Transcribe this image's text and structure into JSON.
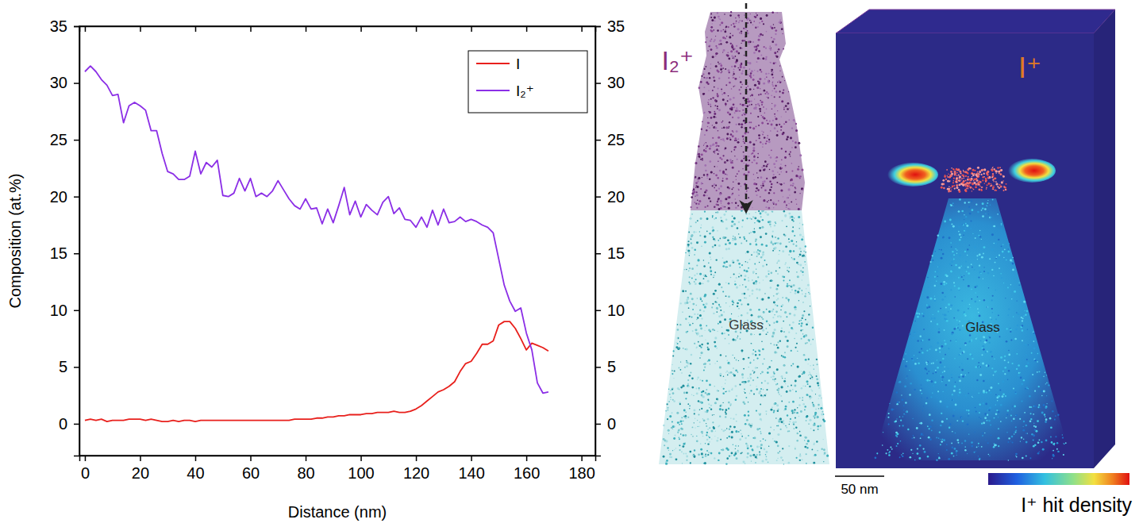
{
  "chart_data": {
    "type": "line",
    "x_label": "Distance (nm)",
    "y_label": "Composition (at.%)",
    "xlim": [
      -2,
      185
    ],
    "xticks": [
      0,
      20,
      40,
      60,
      80,
      100,
      120,
      140,
      160,
      180
    ],
    "ylim": [
      -2.8,
      35
    ],
    "yticks": [
      0,
      5,
      10,
      15,
      20,
      25,
      30,
      35
    ],
    "y2lim": [
      -2.8,
      35
    ],
    "y2ticks": [
      0,
      5,
      10,
      15,
      20,
      25,
      30,
      35
    ],
    "legend": "upper right",
    "x": [
      0,
      2,
      4,
      6,
      8,
      10,
      12,
      14,
      16,
      18,
      20,
      22,
      24,
      26,
      28,
      30,
      32,
      34,
      36,
      38,
      40,
      42,
      44,
      46,
      48,
      50,
      52,
      54,
      56,
      58,
      60,
      62,
      64,
      66,
      68,
      70,
      72,
      74,
      76,
      78,
      80,
      82,
      84,
      86,
      88,
      90,
      92,
      94,
      96,
      98,
      100,
      102,
      104,
      106,
      108,
      110,
      112,
      114,
      116,
      118,
      120,
      122,
      124,
      126,
      128,
      130,
      132,
      134,
      136,
      138,
      140,
      142,
      144,
      146,
      148,
      150,
      152,
      154,
      156,
      158,
      160,
      162,
      164,
      166,
      168
    ],
    "series": [
      {
        "name": "I",
        "color": "#e8201c",
        "values": [
          0.3,
          0.4,
          0.3,
          0.4,
          0.2,
          0.3,
          0.3,
          0.3,
          0.4,
          0.4,
          0.4,
          0.3,
          0.4,
          0.3,
          0.2,
          0.2,
          0.3,
          0.2,
          0.3,
          0.3,
          0.2,
          0.3,
          0.3,
          0.3,
          0.3,
          0.3,
          0.3,
          0.3,
          0.3,
          0.3,
          0.3,
          0.3,
          0.3,
          0.3,
          0.3,
          0.3,
          0.3,
          0.3,
          0.4,
          0.4,
          0.4,
          0.4,
          0.5,
          0.5,
          0.6,
          0.6,
          0.7,
          0.7,
          0.8,
          0.8,
          0.8,
          0.9,
          0.9,
          1.0,
          1.0,
          1.0,
          1.1,
          1.0,
          1.0,
          1.1,
          1.3,
          1.6,
          2.0,
          2.4,
          2.8,
          3.0,
          3.3,
          3.7,
          4.6,
          5.3,
          5.5,
          6.2,
          7.0,
          7.0,
          7.3,
          8.7,
          9.0,
          9.0,
          8.4,
          7.5,
          6.5,
          7.1,
          6.9,
          6.7,
          6.4
        ]
      },
      {
        "name": "I₂⁺",
        "color": "#8b2ee6",
        "values": [
          31.0,
          31.5,
          31.0,
          30.3,
          29.8,
          28.9,
          29.0,
          26.5,
          28.0,
          28.3,
          28.0,
          27.6,
          25.8,
          25.8,
          23.8,
          22.2,
          22.0,
          21.5,
          21.5,
          21.8,
          24.0,
          22.0,
          23.0,
          22.6,
          23.2,
          20.1,
          20.0,
          20.3,
          21.6,
          20.5,
          21.6,
          20.0,
          20.3,
          20.0,
          20.5,
          21.4,
          20.6,
          19.8,
          19.2,
          18.9,
          19.8,
          18.9,
          19.0,
          17.6,
          18.9,
          17.7,
          19.2,
          20.8,
          18.4,
          19.6,
          18.2,
          19.3,
          18.8,
          18.4,
          19.5,
          20.0,
          18.5,
          19.0,
          18.0,
          17.9,
          17.3,
          18.2,
          17.3,
          18.8,
          17.5,
          18.9,
          17.7,
          17.8,
          18.2,
          17.8,
          18.0,
          17.8,
          17.5,
          17.3,
          16.8,
          14.5,
          12.2,
          10.8,
          9.9,
          10.2,
          8.0,
          6.5,
          3.6,
          2.7,
          2.8
        ]
      }
    ]
  },
  "reconstructions": {
    "left": {
      "label": "I₂⁺",
      "region": "Glass"
    },
    "right": {
      "label": "I⁺",
      "region": "Glass",
      "scale_bar": "50 nm",
      "colorbar_label": "I⁺ hit density"
    }
  }
}
